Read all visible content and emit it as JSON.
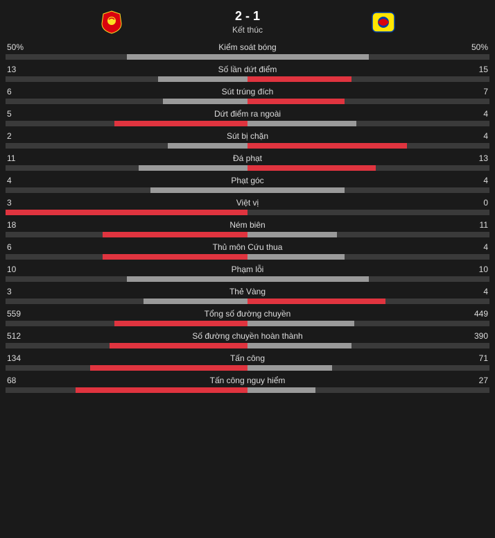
{
  "match": {
    "score": "2 - 1",
    "status": "Kết thúc"
  },
  "colors": {
    "track": "#3a3a3a",
    "loser": "#9a9a9a",
    "winner": "#e0343f",
    "text": "#ddd",
    "bg": "#1a1a1a"
  },
  "stats": [
    {
      "name": "Kiểm soát bóng",
      "home": "50%",
      "away": "50%",
      "home_pct": 50,
      "away_pct": 50,
      "winner": "none"
    },
    {
      "name": "Số lần dứt điểm",
      "home": "13",
      "away": "15",
      "home_pct": 37,
      "away_pct": 43,
      "winner": "away"
    },
    {
      "name": "Sút trúng đích",
      "home": "6",
      "away": "7",
      "home_pct": 35,
      "away_pct": 40,
      "winner": "away"
    },
    {
      "name": "Dứt điểm ra ngoài",
      "home": "5",
      "away": "4",
      "home_pct": 55,
      "away_pct": 45,
      "winner": "home"
    },
    {
      "name": "Sút bị chặn",
      "home": "2",
      "away": "4",
      "home_pct": 33,
      "away_pct": 66,
      "winner": "away"
    },
    {
      "name": "Đá phạt",
      "home": "11",
      "away": "13",
      "home_pct": 45,
      "away_pct": 53,
      "winner": "away"
    },
    {
      "name": "Phạt góc",
      "home": "4",
      "away": "4",
      "home_pct": 40,
      "away_pct": 40,
      "winner": "none"
    },
    {
      "name": "Việt vị",
      "home": "3",
      "away": "0",
      "home_pct": 100,
      "away_pct": 0,
      "winner": "home"
    },
    {
      "name": "Ném biên",
      "home": "18",
      "away": "11",
      "home_pct": 60,
      "away_pct": 37,
      "winner": "home"
    },
    {
      "name": "Thủ môn Cứu thua",
      "home": "6",
      "away": "4",
      "home_pct": 60,
      "away_pct": 40,
      "winner": "home"
    },
    {
      "name": "Phạm lỗi",
      "home": "10",
      "away": "10",
      "home_pct": 50,
      "away_pct": 50,
      "winner": "none"
    },
    {
      "name": "Thẻ Vàng",
      "home": "3",
      "away": "4",
      "home_pct": 43,
      "away_pct": 57,
      "winner": "away"
    },
    {
      "name": "Tổng số đường chuyền",
      "home": "559",
      "away": "449",
      "home_pct": 55,
      "away_pct": 44,
      "winner": "home"
    },
    {
      "name": "Số đường chuyền hoàn thành",
      "home": "512",
      "away": "390",
      "home_pct": 57,
      "away_pct": 43,
      "winner": "home"
    },
    {
      "name": "Tấn công",
      "home": "134",
      "away": "71",
      "home_pct": 65,
      "away_pct": 35,
      "winner": "home"
    },
    {
      "name": "Tấn công nguy hiểm",
      "home": "68",
      "away": "27",
      "home_pct": 71,
      "away_pct": 28,
      "winner": "home"
    }
  ]
}
